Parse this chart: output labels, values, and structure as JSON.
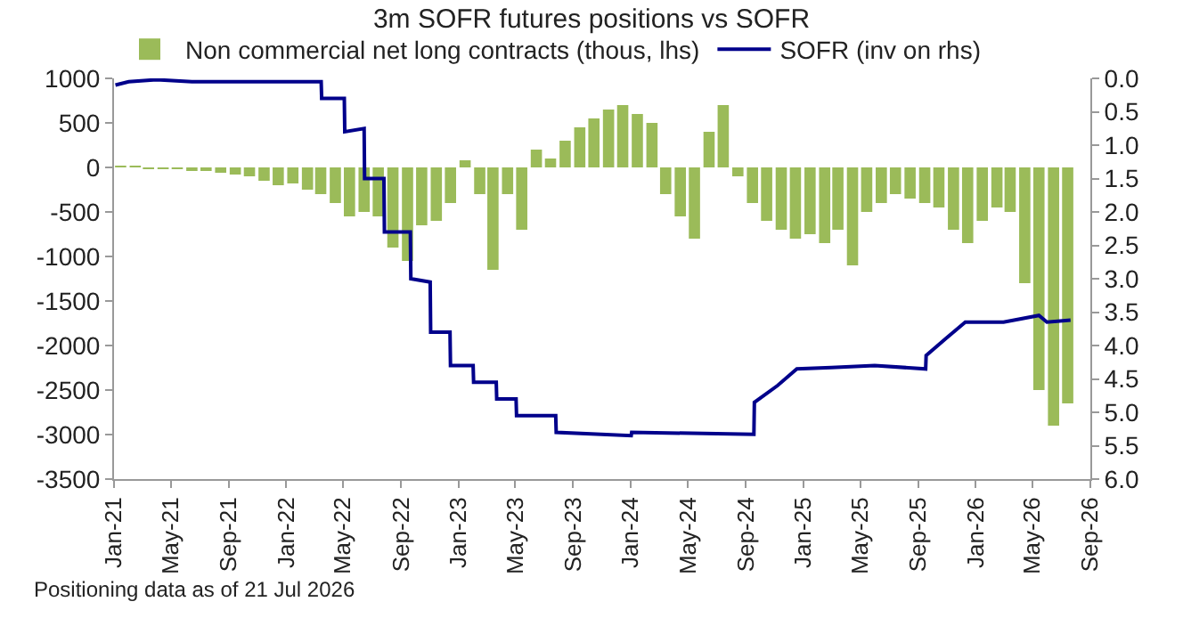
{
  "chart_data": {
    "type": "bar",
    "title": "3m SOFR futures positions vs SOFR",
    "annotations": [
      "Positioning data as of 21 Jul 2026"
    ],
    "legend": "top",
    "xlim": [
      "2021-01-01",
      "2026-09-01"
    ],
    "xticks": [
      {
        "value": "2021-01-01",
        "label": "Jan-21"
      },
      {
        "value": "2021-05-01",
        "label": "May-21"
      },
      {
        "value": "2021-09-01",
        "label": "Sep-21"
      },
      {
        "value": "2022-01-01",
        "label": "Jan-22"
      },
      {
        "value": "2022-05-01",
        "label": "May-22"
      },
      {
        "value": "2022-09-01",
        "label": "Sep-22"
      },
      {
        "value": "2023-01-01",
        "label": "Jan-23"
      },
      {
        "value": "2023-05-01",
        "label": "May-23"
      },
      {
        "value": "2023-09-01",
        "label": "Sep-23"
      },
      {
        "value": "2024-01-01",
        "label": "Jan-24"
      },
      {
        "value": "2024-05-01",
        "label": "May-24"
      },
      {
        "value": "2024-09-01",
        "label": "Sep-24"
      },
      {
        "value": "2025-01-01",
        "label": "Jan-25"
      },
      {
        "value": "2025-05-01",
        "label": "May-25"
      },
      {
        "value": "2025-09-01",
        "label": "Sep-25"
      },
      {
        "value": "2026-01-01",
        "label": "Jan-26"
      },
      {
        "value": "2026-05-01",
        "label": "May-26"
      },
      {
        "value": "2026-09-01",
        "label": "Sep-26"
      }
    ],
    "ylim": [
      -3500,
      1000
    ],
    "yticks": [
      -3500,
      -3000,
      -2500,
      -2000,
      -1500,
      -1000,
      -500,
      0,
      500,
      1000
    ],
    "y2lim": [
      6.0,
      0.0
    ],
    "y2ticks": [
      {
        "value": 0,
        "label": "0.0"
      },
      {
        "value": 0.5,
        "label": "0.5"
      },
      {
        "value": 1,
        "label": "1.0"
      },
      {
        "value": 1.5,
        "label": "1.5"
      },
      {
        "value": 2,
        "label": "2.0"
      },
      {
        "value": 2.5,
        "label": "2.5"
      },
      {
        "value": 3,
        "label": "3.0"
      },
      {
        "value": 3.5,
        "label": "3.5"
      },
      {
        "value": 4,
        "label": "4.0"
      },
      {
        "value": 4.5,
        "label": "4.5"
      },
      {
        "value": 5,
        "label": "5.0"
      },
      {
        "value": 5.5,
        "label": "5.5"
      },
      {
        "value": 6,
        "label": "6.0"
      }
    ],
    "series": [
      {
        "name": "Non commercial net long contracts (thous, lhs)",
        "color": "#9bbb59",
        "x": [
          "2021-01-15",
          "2021-02-15",
          "2021-03-15",
          "2021-04-15",
          "2021-05-15",
          "2021-06-15",
          "2021-07-15",
          "2021-08-15",
          "2021-09-15",
          "2021-10-15",
          "2021-11-15",
          "2021-12-15",
          "2022-01-15",
          "2022-02-15",
          "2022-03-15",
          "2022-04-15",
          "2022-05-15",
          "2022-06-15",
          "2022-07-15",
          "2022-08-15",
          "2022-09-15",
          "2022-10-15",
          "2022-11-15",
          "2022-12-15",
          "2023-01-15",
          "2023-02-15",
          "2023-03-15",
          "2023-04-15",
          "2023-05-15",
          "2023-06-15",
          "2023-07-15",
          "2023-08-15",
          "2023-09-15",
          "2023-10-15",
          "2023-11-15",
          "2023-12-15",
          "2024-01-15",
          "2024-02-15",
          "2024-03-15",
          "2024-04-15",
          "2024-05-15",
          "2024-06-15",
          "2024-07-15",
          "2024-08-15",
          "2024-09-15",
          "2024-10-15",
          "2024-11-15",
          "2024-12-15",
          "2025-01-15",
          "2025-02-15",
          "2025-03-15",
          "2025-04-15",
          "2025-05-15",
          "2025-06-15",
          "2025-07-15",
          "2025-08-15",
          "2025-09-15",
          "2025-10-15",
          "2025-11-15",
          "2025-12-15",
          "2026-01-15",
          "2026-02-15",
          "2026-03-15",
          "2026-04-15",
          "2026-05-15",
          "2026-06-15",
          "2026-07-15"
        ],
        "values": [
          20,
          10,
          -10,
          -20,
          -20,
          -30,
          -40,
          -60,
          -80,
          -100,
          -150,
          -200,
          -180,
          -250,
          -300,
          -400,
          -550,
          -500,
          -550,
          -900,
          -1050,
          -650,
          -600,
          -400,
          80,
          -300,
          -1150,
          -300,
          -700,
          200,
          100,
          300,
          450,
          550,
          650,
          700,
          600,
          500,
          -300,
          -550,
          -800,
          400,
          700,
          -100,
          -400,
          -600,
          -700,
          -800,
          -750,
          -850,
          -700,
          -1100,
          -500,
          -400,
          -300,
          -350,
          -400,
          -450,
          -700,
          -850,
          -600,
          -450,
          -500,
          -1300,
          -2500,
          -2900,
          -2650
        ]
      },
      {
        "name": "SOFR (inv on rhs)",
        "type": "line",
        "axis": "y2",
        "color": "#00008b",
        "x": [
          "2021-01-04",
          "2021-02-01",
          "2021-04-01",
          "2021-06-15",
          "2021-09-01",
          "2022-03-16",
          "2022-03-17",
          "2022-05-04",
          "2022-05-05",
          "2022-06-15",
          "2022-06-16",
          "2022-07-27",
          "2022-07-28",
          "2022-09-21",
          "2022-09-22",
          "2022-11-02",
          "2022-11-03",
          "2022-12-14",
          "2022-12-15",
          "2023-02-01",
          "2023-02-02",
          "2023-03-22",
          "2023-03-23",
          "2023-05-03",
          "2023-05-04",
          "2023-07-26",
          "2023-07-27",
          "2024-01-02",
          "2024-01-03",
          "2024-09-18",
          "2024-09-19",
          "2024-11-07",
          "2024-12-18",
          "2025-03-01",
          "2025-06-01",
          "2025-09-17",
          "2025-09-18",
          "2025-10-29",
          "2025-12-10",
          "2026-03-01",
          "2026-05-15",
          "2026-06-01",
          "2026-07-21"
        ],
        "values": [
          0.1,
          0.05,
          0.02,
          0.05,
          0.05,
          0.05,
          0.3,
          0.3,
          0.8,
          0.75,
          1.5,
          1.5,
          2.3,
          2.3,
          3.0,
          3.05,
          3.8,
          3.8,
          4.3,
          4.3,
          4.55,
          4.55,
          4.8,
          4.8,
          5.05,
          5.05,
          5.3,
          5.35,
          5.3,
          5.33,
          4.85,
          4.6,
          4.35,
          4.33,
          4.3,
          4.35,
          4.15,
          3.9,
          3.65,
          3.65,
          3.55,
          3.65,
          3.62
        ]
      }
    ]
  }
}
